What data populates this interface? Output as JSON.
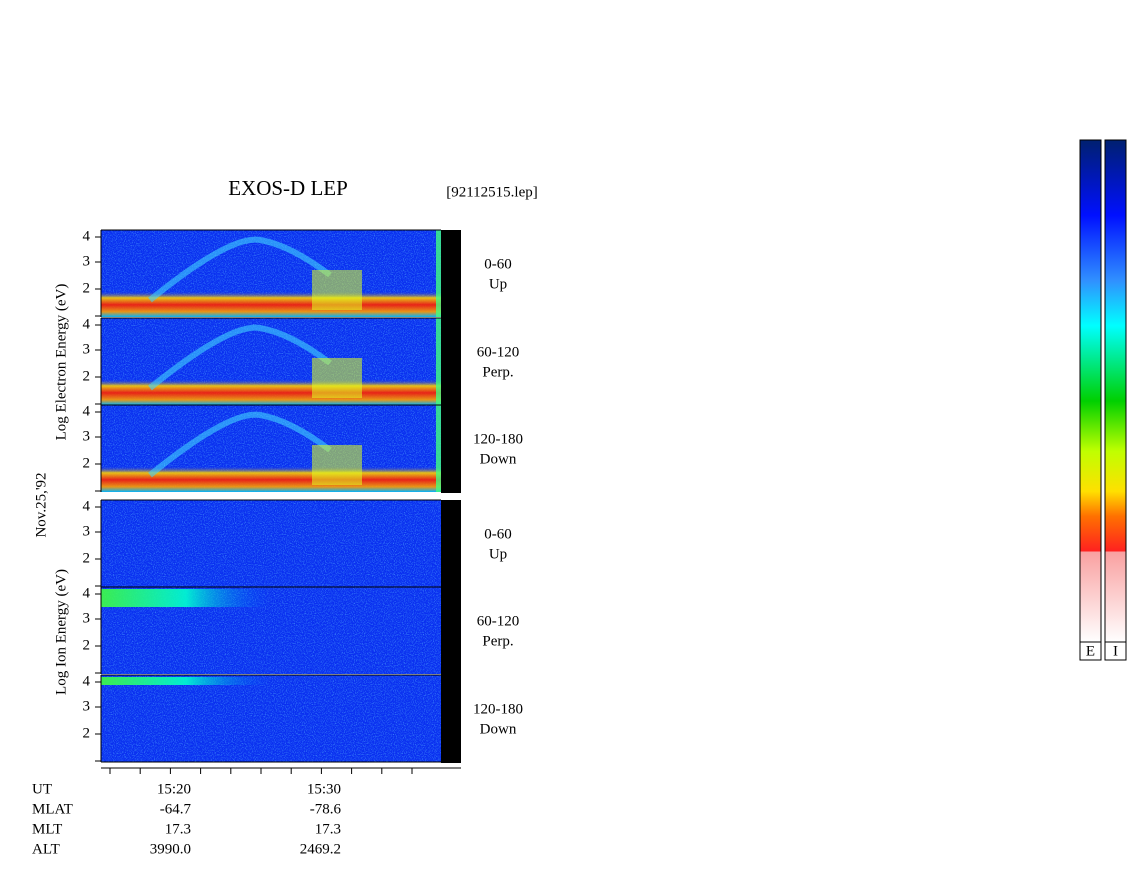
{
  "header": {
    "title": "EXOS-D LEP",
    "file": "[92112515.lep]"
  },
  "date": "Nov.25,'92",
  "electron": {
    "axis_label": "Log  Electron  Energy (eV)",
    "panels": [
      {
        "range": "0-60",
        "direction": "Up"
      },
      {
        "range": "60-120",
        "direction": "Perp."
      },
      {
        "range": "120-180",
        "direction": "Down"
      }
    ]
  },
  "ion": {
    "axis_label": "Log  Ion  Energy (eV)",
    "panels": [
      {
        "range": "0-60",
        "direction": "Up"
      },
      {
        "range": "60-120",
        "direction": "Perp."
      },
      {
        "range": "120-180",
        "direction": "Down"
      }
    ]
  },
  "energy_ticks": [
    "4",
    "3",
    "2"
  ],
  "orbit": {
    "rows": [
      {
        "label": "UT",
        "values": [
          "15:20",
          "15:30"
        ]
      },
      {
        "label": "MLAT",
        "values": [
          "-64.7",
          "-78.6"
        ]
      },
      {
        "label": "MLT",
        "values": [
          "17.3",
          "17.3"
        ]
      },
      {
        "label": "ALT",
        "values": [
          "3990.0",
          "2469.2"
        ]
      }
    ]
  },
  "colorbars": [
    "E",
    "I"
  ]
}
